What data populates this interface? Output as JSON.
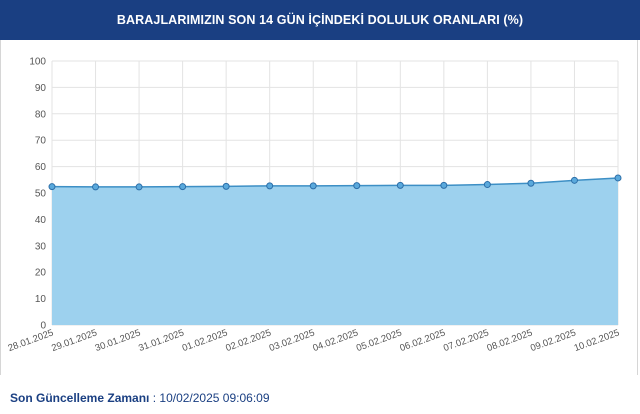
{
  "header": {
    "title": "BARAJLARIMIZIN SON 14 GÜN İÇİNDEKİ DOLULUK ORANLARI (%)"
  },
  "chart_data": {
    "type": "area",
    "x": [
      "28.01.2025",
      "29.01.2025",
      "30.01.2025",
      "31.01.2025",
      "01.02.2025",
      "02.02.2025",
      "03.02.2025",
      "04.02.2025",
      "05.02.2025",
      "06.02.2025",
      "07.02.2025",
      "08.02.2025",
      "09.02.2025",
      "10.02.2025"
    ],
    "series": [
      {
        "values": [
          52.4,
          52.3,
          52.3,
          52.4,
          52.5,
          52.7,
          52.7,
          52.8,
          52.9,
          52.9,
          53.2,
          53.7,
          54.8,
          55.7
        ]
      }
    ],
    "yticks": [
      0,
      10,
      20,
      30,
      40,
      50,
      60,
      70,
      80,
      90,
      100
    ],
    "ylim": [
      0,
      100
    ],
    "grid": true,
    "colors": {
      "fill": "#9dd1ee",
      "line": "#3d8fc5",
      "marker_fill": "#5aa9dc",
      "marker_stroke": "#2c6ea8",
      "grid": "#e3e3e3"
    }
  },
  "footer": {
    "label": "Son Güncelleme Zamanı",
    "separator": " : ",
    "value": "10/02/2025 09:06:09"
  },
  "colors": {
    "header_bg": "#1a3f82",
    "footer_text": "#1a3f82"
  }
}
